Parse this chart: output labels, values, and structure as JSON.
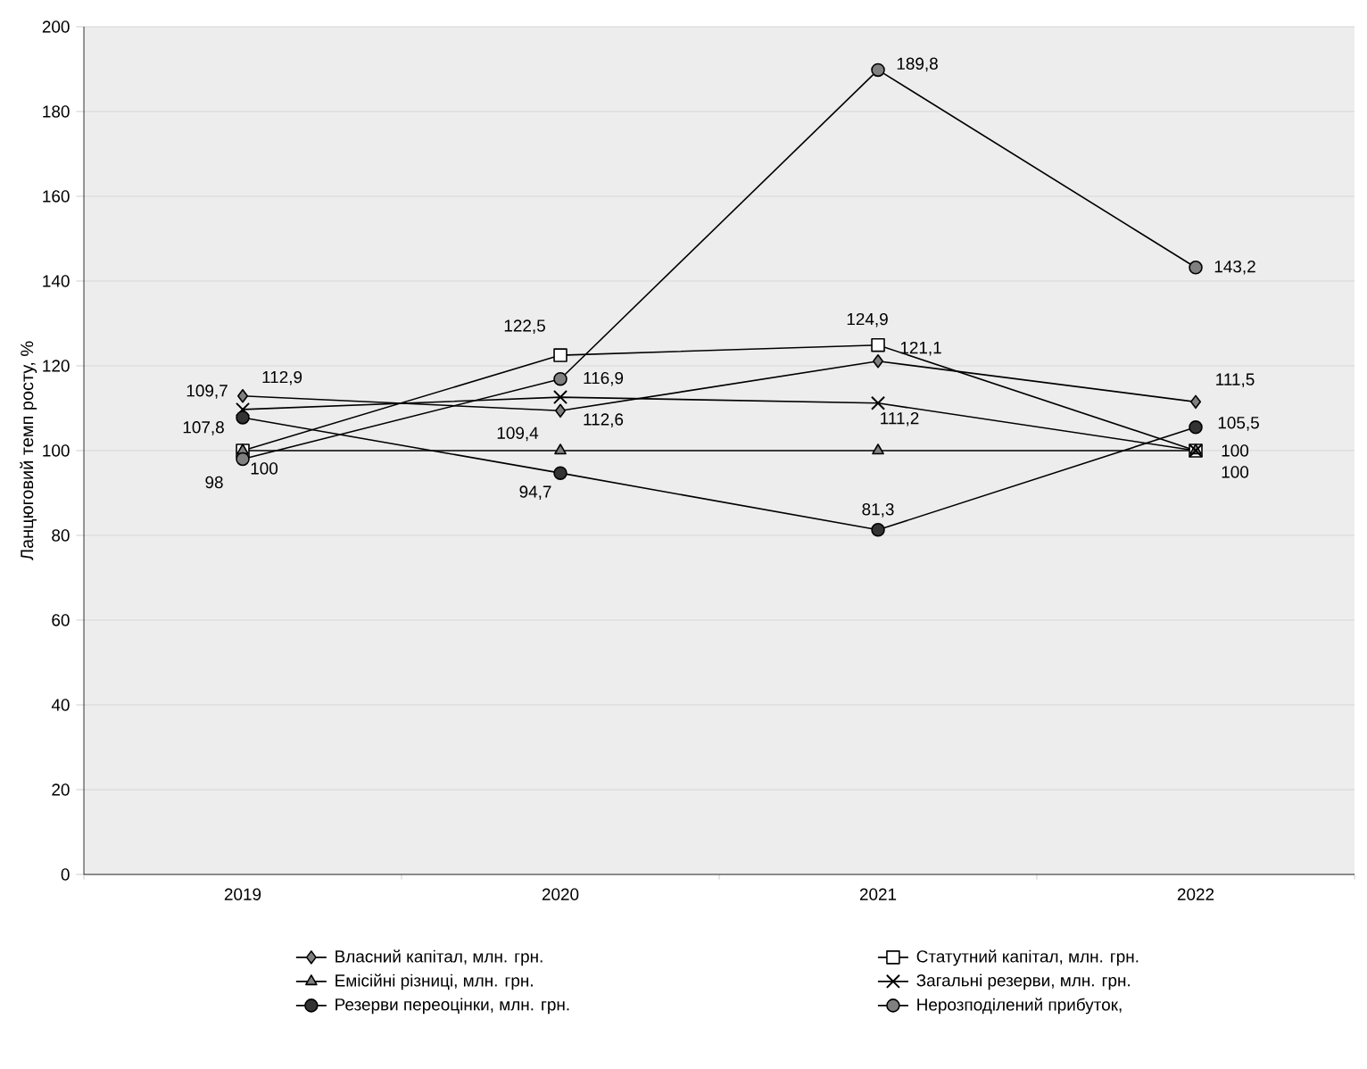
{
  "chart_data": {
    "type": "line",
    "ylabel": "Ланцюговий темп росту, %",
    "categories": [
      "2019",
      "2020",
      "2021",
      "2022"
    ],
    "ylim": [
      0,
      200
    ],
    "yticks": [
      0,
      20,
      40,
      60,
      80,
      100,
      120,
      140,
      160,
      180,
      200
    ],
    "grid": "y",
    "legend": "bottom",
    "series": [
      {
        "name": "Власний капітал, млн. грн.",
        "color": "#808080",
        "marker": "diamond",
        "values": [
          112.9,
          109.4,
          121.1,
          111.5
        ],
        "value_labels": [
          "112,9",
          "109,4",
          "121,1",
          "111,5"
        ]
      },
      {
        "name": "Статутний капітал, млн. грн.",
        "color": "#ffffff",
        "marker": "square",
        "values": [
          100,
          122.5,
          124.9,
          100
        ],
        "value_labels": [
          "100",
          "122,5",
          "124,9",
          "100"
        ]
      },
      {
        "name": "Емісійні різниці, млн. грн.",
        "color": "#808080",
        "marker": "triangle",
        "values": [
          100,
          100,
          100,
          100
        ]
      },
      {
        "name": "Загальні резерви, млн. грн.",
        "color": "#000000",
        "marker": "cross",
        "values": [
          109.7,
          112.6,
          111.2,
          100
        ],
        "value_labels": [
          "109,7",
          "112,6",
          "111,2",
          "100"
        ]
      },
      {
        "name": "Резерви переоцінки, млн. грн.",
        "color": "#333333",
        "marker": "circle",
        "values": [
          107.8,
          94.7,
          81.3,
          105.5
        ],
        "value_labels": [
          "107,8",
          "94,7",
          "81,3",
          "105,5"
        ]
      },
      {
        "name": "Нерозподілений прибуток,",
        "color": "#808080",
        "marker": "circle",
        "values": [
          98,
          116.9,
          189.8,
          143.2
        ],
        "value_labels": [
          "98",
          "116,9",
          "189,8",
          "143,2"
        ]
      }
    ]
  }
}
